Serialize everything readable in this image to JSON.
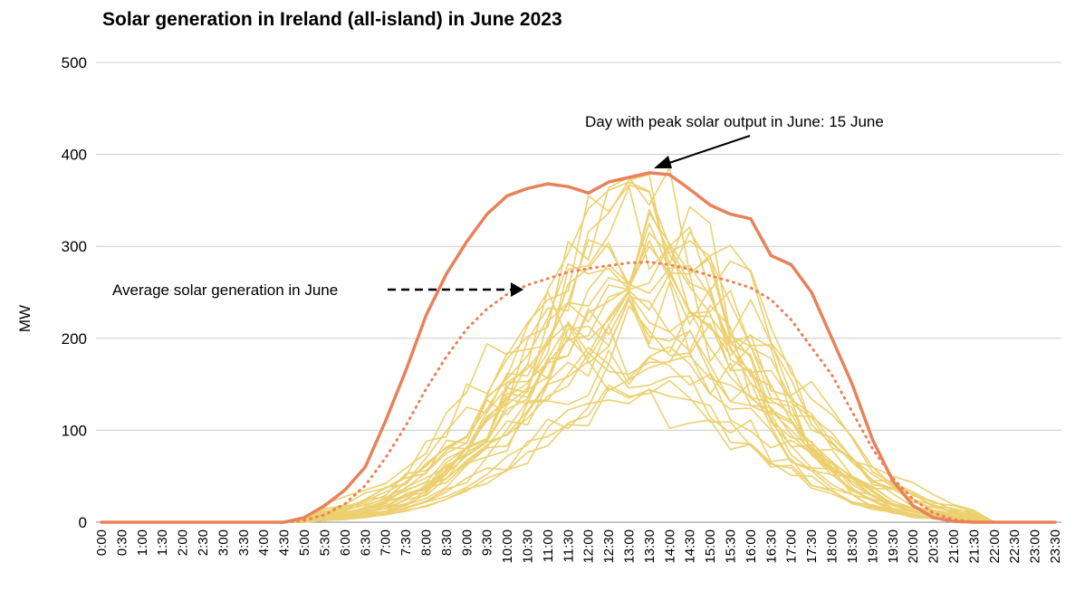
{
  "chart_data": {
    "type": "line",
    "title": "Solar generation in Ireland (all-island) in June 2023",
    "ylabel": "MW",
    "xlabel": "",
    "ylim": [
      0,
      500
    ],
    "yticks": [
      0,
      100,
      200,
      300,
      400,
      500
    ],
    "grid": true,
    "x": [
      "0:00",
      "0:30",
      "1:00",
      "1:30",
      "2:00",
      "2:30",
      "3:00",
      "3:30",
      "4:00",
      "4:30",
      "5:00",
      "5:30",
      "6:00",
      "6:30",
      "7:00",
      "7:30",
      "8:00",
      "8:30",
      "9:00",
      "9:30",
      "10:00",
      "10:30",
      "11:00",
      "11:30",
      "12:00",
      "12:30",
      "13:00",
      "13:30",
      "14:00",
      "14:30",
      "15:00",
      "15:30",
      "16:00",
      "16:30",
      "17:00",
      "17:30",
      "18:00",
      "18:30",
      "19:00",
      "19:30",
      "20:00",
      "20:30",
      "21:00",
      "21:30",
      "22:00",
      "22:30",
      "23:00",
      "23:30"
    ],
    "series": [
      {
        "name": "15 June",
        "color": "#e8825a",
        "style": "solid-bold",
        "values": [
          0,
          0,
          0,
          0,
          0,
          0,
          0,
          0,
          0,
          0,
          5,
          18,
          35,
          60,
          110,
          165,
          225,
          270,
          305,
          335,
          355,
          363,
          368,
          365,
          358,
          370,
          375,
          380,
          378,
          362,
          345,
          335,
          330,
          290,
          280,
          250,
          200,
          150,
          90,
          45,
          18,
          5,
          1,
          0,
          0,
          0,
          0,
          0
        ]
      },
      {
        "name": "Average",
        "color": "#e8825a",
        "style": "dotted",
        "values": [
          0,
          0,
          0,
          0,
          0,
          0,
          0,
          0,
          0,
          0,
          2,
          8,
          20,
          40,
          70,
          105,
          145,
          180,
          210,
          232,
          248,
          258,
          265,
          272,
          276,
          279,
          282,
          283,
          280,
          275,
          268,
          262,
          255,
          242,
          220,
          190,
          160,
          120,
          80,
          48,
          25,
          10,
          3,
          0,
          0,
          0,
          0,
          0
        ]
      }
    ],
    "other_days_color": "#ecd06f",
    "annotations": [
      {
        "text": "Day with peak solar output in June: 15 June"
      },
      {
        "text": "Average solar generation in June"
      }
    ]
  }
}
